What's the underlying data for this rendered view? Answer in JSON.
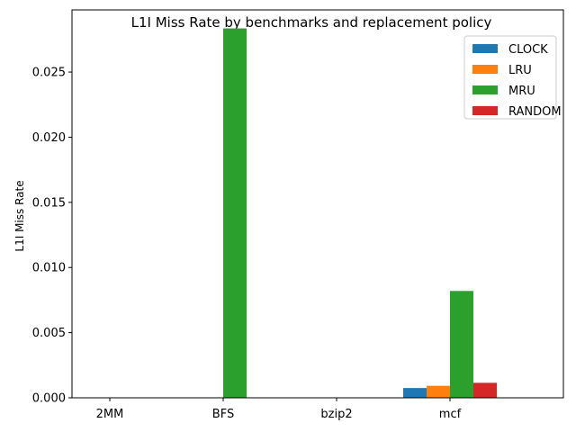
{
  "chart_data": {
    "type": "bar",
    "title": "L1I Miss Rate by benchmarks and replacement policy",
    "xlabel": "",
    "ylabel": "L1I Miss Rate",
    "categories": [
      "2MM",
      "BFS",
      "bzip2",
      "mcf"
    ],
    "series": [
      {
        "name": "CLOCK",
        "color": "#1f77b4",
        "values": [
          0.0,
          0.0,
          0.0,
          0.00075
        ]
      },
      {
        "name": "LRU",
        "color": "#ff7f0e",
        "values": [
          0.0,
          0.0,
          0.0,
          0.00092
        ]
      },
      {
        "name": "MRU",
        "color": "#2ca02c",
        "values": [
          0.0,
          0.02835,
          0.0,
          0.0082
        ]
      },
      {
        "name": "RANDOM",
        "color": "#d62728",
        "values": [
          0.0,
          0.0,
          0.0,
          0.00115
        ]
      }
    ],
    "ylim": [
      0,
      0.02977
    ],
    "yticks": [
      0.0,
      0.005,
      0.01,
      0.015,
      0.02,
      0.025
    ],
    "ytick_labels": [
      "0.000",
      "0.005",
      "0.010",
      "0.015",
      "0.020",
      "0.025"
    ],
    "grid": false,
    "legend_position": "top-right"
  }
}
